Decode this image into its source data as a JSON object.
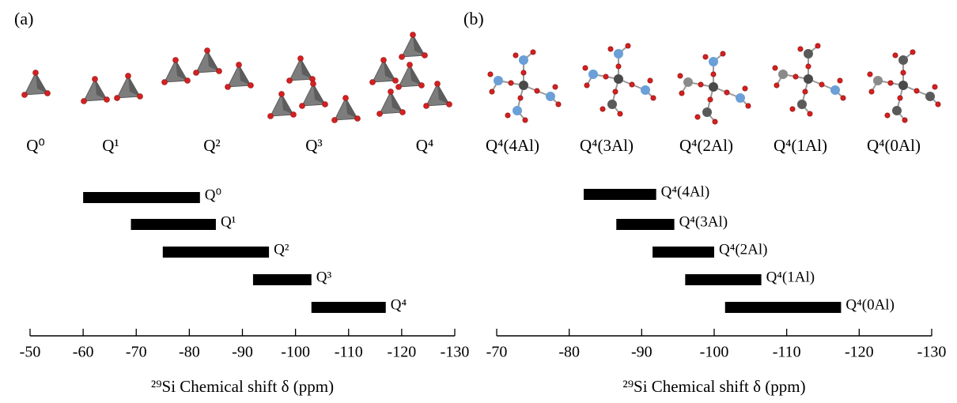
{
  "chart_data": [
    {
      "type": "bar",
      "title": "(a)",
      "categories": [
        "Q⁰",
        "Q¹",
        "Q²",
        "Q³",
        "Q⁴"
      ],
      "values": [
        [
          -60,
          -82
        ],
        [
          -69,
          -85
        ],
        [
          -75,
          -95
        ],
        [
          -92,
          -103
        ],
        [
          -103,
          -117
        ]
      ],
      "color": "#000000",
      "xlim": [
        -50,
        -130
      ],
      "xticks": [
        -50,
        -60,
        -70,
        -80,
        -90,
        -100,
        -110,
        -120,
        -130
      ],
      "xlabel": "²⁹Si Chemical shift δ (ppm)"
    },
    {
      "type": "bar",
      "title": "(b)",
      "categories": [
        "Q⁴(4Al)",
        "Q⁴(3Al)",
        "Q⁴(2Al)",
        "Q⁴(1Al)",
        "Q⁴(0Al)"
      ],
      "values": [
        [
          -82,
          -92
        ],
        [
          -86.5,
          -94.5
        ],
        [
          -91.5,
          -100
        ],
        [
          -96,
          -106.5
        ],
        [
          -101.5,
          -117.5
        ]
      ],
      "color": "#000000",
      "xlim": [
        -70,
        -130
      ],
      "xticks": [
        -70,
        -80,
        -90,
        -100,
        -110,
        -120,
        -130
      ],
      "xlabel": "²⁹Si Chemical shift δ (ppm)"
    }
  ]
}
